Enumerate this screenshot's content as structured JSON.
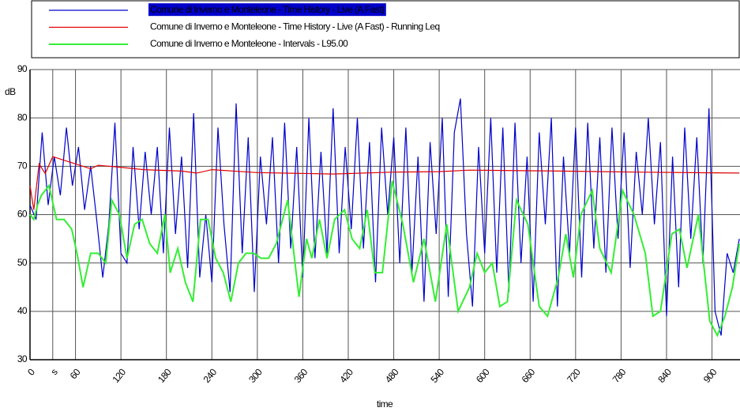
{
  "chart_data": {
    "type": "line",
    "xlabel": "time",
    "ylabel": "dB",
    "xlim": [
      0,
      938
    ],
    "ylim": [
      30,
      90
    ],
    "xticks": [
      0,
      {
        "value": 30,
        "label": "s"
      },
      60,
      120,
      180,
      240,
      300,
      360,
      420,
      480,
      540,
      600,
      660,
      720,
      780,
      840,
      900
    ],
    "yticks": [
      30,
      40,
      50,
      60,
      70,
      80,
      90
    ],
    "grid": true,
    "series": [
      {
        "name": "Comune di Inverno e Monteleone - Time History - Live (A Fast)",
        "color": "#0000cc",
        "x": [
          0,
          8,
          16,
          24,
          32,
          40,
          48,
          56,
          64,
          72,
          80,
          88,
          96,
          104,
          112,
          120,
          128,
          136,
          144,
          152,
          160,
          168,
          176,
          184,
          192,
          200,
          208,
          216,
          224,
          232,
          240,
          248,
          256,
          264,
          272,
          280,
          288,
          296,
          304,
          312,
          320,
          328,
          336,
          344,
          352,
          360,
          368,
          376,
          384,
          392,
          400,
          408,
          416,
          424,
          432,
          440,
          448,
          456,
          464,
          472,
          480,
          488,
          496,
          504,
          512,
          520,
          528,
          536,
          544,
          552,
          560,
          568,
          576,
          584,
          592,
          600,
          608,
          616,
          624,
          632,
          640,
          648,
          656,
          664,
          672,
          680,
          688,
          696,
          704,
          712,
          720,
          728,
          736,
          744,
          752,
          760,
          768,
          776,
          784,
          792,
          800,
          808,
          816,
          824,
          832,
          840,
          848,
          856,
          864,
          872,
          880,
          888,
          896,
          904,
          912,
          920,
          928,
          936
        ],
        "values": [
          62,
          59,
          77,
          62,
          72,
          64,
          78,
          66,
          74,
          61,
          70,
          59,
          47,
          58,
          79,
          52,
          50,
          74,
          57,
          73,
          60,
          74,
          52,
          78,
          56,
          72,
          49,
          81,
          47,
          60,
          46,
          78,
          58,
          44,
          83,
          52,
          76,
          44,
          72,
          58,
          76,
          50,
          79,
          53,
          74,
          47,
          80,
          51,
          73,
          52,
          82,
          52,
          74,
          57,
          80,
          53,
          75,
          46,
          78,
          60,
          76,
          50,
          78,
          48,
          72,
          42,
          75,
          56,
          80,
          43,
          77,
          84,
          56,
          41,
          74,
          52,
          80,
          48,
          78,
          44,
          79,
          50,
          72,
          42,
          77,
          58,
          80,
          41,
          72,
          52,
          78,
          47,
          79,
          53,
          76,
          48,
          78,
          55,
          77,
          49,
          73,
          60,
          80,
          58,
          75,
          39,
          72,
          45,
          78,
          55,
          76,
          50,
          82,
          40,
          35,
          52,
          48,
          55
        ]
      },
      {
        "name": "Comune di Inverno e Monteleone - Time History - Live (A Fast) - Running Leq",
        "color": "#e00000",
        "x": [
          0,
          5,
          12,
          20,
          30,
          40,
          60,
          80,
          90,
          120,
          150,
          200,
          220,
          240,
          300,
          400,
          480,
          540,
          580,
          700,
          800,
          936
        ],
        "values": [
          66,
          61,
          70.5,
          68.5,
          72,
          71.5,
          70.5,
          69.5,
          70.2,
          69.8,
          69.3,
          69,
          68.6,
          69.3,
          68.7,
          68.4,
          68.8,
          68.9,
          69.2,
          69,
          68.8,
          68.6
        ]
      },
      {
        "name": "Comune di Inverno e Monteleone - Intervals - L95.00",
        "color": "#33ee33",
        "x": [
          0,
          5,
          10,
          15,
          25,
          35,
          45,
          55,
          62,
          70,
          80,
          90,
          100,
          108,
          118,
          128,
          138,
          148,
          158,
          168,
          178,
          185,
          195,
          205,
          215,
          225,
          235,
          245,
          255,
          265,
          275,
          285,
          295,
          305,
          315,
          325,
          340,
          355,
          365,
          372,
          382,
          392,
          402,
          415,
          425,
          435,
          445,
          455,
          465,
          478,
          492,
          506,
          520,
          535,
          550,
          565,
          580,
          590,
          600,
          610,
          620,
          630,
          642,
          657,
          672,
          683,
          697,
          707,
          717,
          727,
          742,
          752,
          767,
          782,
          797,
          812,
          822,
          832,
          847,
          857,
          867,
          882,
          897,
          907,
          917,
          927,
          936
        ],
        "values": [
          60,
          59,
          62,
          64,
          66,
          59,
          59,
          57,
          52,
          45,
          52,
          52,
          50,
          63,
          60,
          51,
          58,
          59,
          54,
          52,
          60,
          48,
          53,
          46,
          42,
          59,
          59,
          51,
          48,
          42,
          50,
          52,
          52,
          51,
          51,
          54,
          63,
          43,
          55,
          51,
          59,
          51,
          59,
          61,
          55,
          53,
          61,
          48,
          48,
          67,
          58,
          46,
          55,
          42,
          58,
          40,
          45,
          52,
          48,
          50,
          41,
          42,
          63,
          58,
          41,
          39,
          47,
          56,
          47,
          60,
          65,
          53,
          48,
          65,
          60,
          52,
          39,
          40,
          56,
          57,
          49,
          60,
          38,
          35,
          39,
          45,
          54
        ]
      }
    ]
  }
}
